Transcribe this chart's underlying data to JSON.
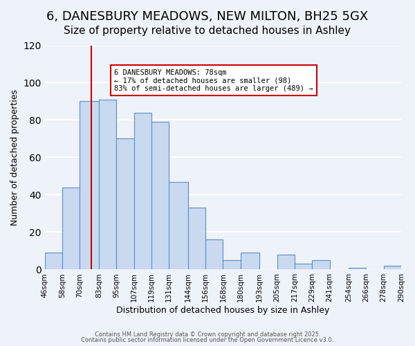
{
  "title": "6, DANESBURY MEADOWS, NEW MILTON, BH25 5GX",
  "subtitle": "Size of property relative to detached houses in Ashley",
  "xlabel": "Distribution of detached houses by size in Ashley",
  "ylabel": "Number of detached properties",
  "bin_labels": [
    "46sqm",
    "58sqm",
    "70sqm",
    "83sqm",
    "95sqm",
    "107sqm",
    "119sqm",
    "131sqm",
    "144sqm",
    "156sqm",
    "168sqm",
    "180sqm",
    "193sqm",
    "205sqm",
    "217sqm",
    "229sqm",
    "241sqm",
    "254sqm",
    "266sqm",
    "278sqm",
    "290sqm"
  ],
  "bin_edges": [
    46,
    58,
    70,
    83,
    95,
    107,
    119,
    131,
    144,
    156,
    168,
    180,
    193,
    205,
    217,
    229,
    241,
    254,
    266,
    278,
    290
  ],
  "bar_heights": [
    9,
    44,
    90,
    91,
    70,
    84,
    79,
    47,
    33,
    16,
    5,
    9,
    0,
    8,
    3,
    5,
    0,
    1,
    0,
    2
  ],
  "bar_facecolor": "#c8d9f0",
  "bar_edgecolor": "#5b8ec4",
  "ylim": [
    0,
    120
  ],
  "yticks": [
    0,
    20,
    40,
    60,
    80,
    100,
    120
  ],
  "vline_x": 78,
  "vline_color": "#cc0000",
  "annotation_title": "6 DANESBURY MEADOWS: 78sqm",
  "annotation_line1": "← 17% of detached houses are smaller (98)",
  "annotation_line2": "83% of semi-detached houses are larger (489) →",
  "footer1": "Contains HM Land Registry data © Crown copyright and database right 2025.",
  "footer2": "Contains public sector information licensed under the Open Government Licence v3.0.",
  "background_color": "#eef2f9",
  "grid_color": "#ffffff",
  "title_fontsize": 13,
  "subtitle_fontsize": 11
}
